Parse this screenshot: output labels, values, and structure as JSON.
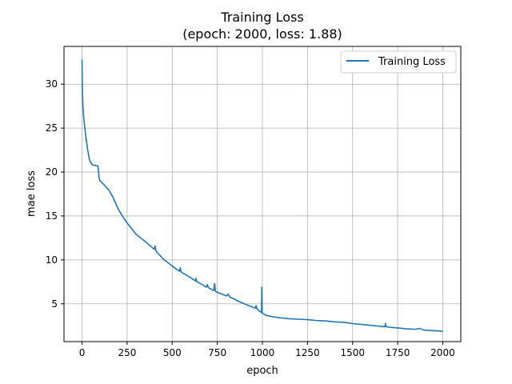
{
  "chart_data": {
    "type": "line",
    "title": "Training Loss",
    "subtitle": "(epoch: 2000, loss: 1.88)",
    "xlabel": "epoch",
    "ylabel": "mae loss",
    "xlim": [
      -100,
      2100
    ],
    "ylim": [
      0.7,
      34.3
    ],
    "xticks": [
      0,
      250,
      500,
      750,
      1000,
      1250,
      1500,
      1750,
      2000
    ],
    "yticks": [
      5,
      10,
      15,
      20,
      25,
      30
    ],
    "grid": true,
    "legend_position": "top-right",
    "series": [
      {
        "name": "Training Loss",
        "color": "#1f77b4",
        "points": [
          [
            0,
            32.8
          ],
          [
            2,
            29.0
          ],
          [
            5,
            27.5
          ],
          [
            10,
            26.0
          ],
          [
            20,
            24.2
          ],
          [
            30,
            22.7
          ],
          [
            40,
            21.5
          ],
          [
            50,
            21.0
          ],
          [
            60,
            20.8
          ],
          [
            70,
            20.75
          ],
          [
            88,
            20.7
          ],
          [
            95,
            19.3
          ],
          [
            100,
            19.0
          ],
          [
            120,
            18.6
          ],
          [
            150,
            17.9
          ],
          [
            170,
            17.2
          ],
          [
            200,
            15.8
          ],
          [
            230,
            14.8
          ],
          [
            250,
            14.2
          ],
          [
            300,
            12.9
          ],
          [
            350,
            12.1
          ],
          [
            400,
            11.2
          ],
          [
            405,
            11.6
          ],
          [
            410,
            11.0
          ],
          [
            450,
            10.1
          ],
          [
            500,
            9.3
          ],
          [
            540,
            8.7
          ],
          [
            545,
            9.1
          ],
          [
            550,
            8.6
          ],
          [
            600,
            8.0
          ],
          [
            630,
            7.6
          ],
          [
            632,
            7.9
          ],
          [
            635,
            7.55
          ],
          [
            690,
            6.9
          ],
          [
            695,
            7.2
          ],
          [
            700,
            6.85
          ],
          [
            730,
            6.5
          ],
          [
            735,
            7.3
          ],
          [
            740,
            6.4
          ],
          [
            800,
            5.9
          ],
          [
            810,
            6.1
          ],
          [
            820,
            5.75
          ],
          [
            850,
            5.5
          ],
          [
            855,
            5.4
          ],
          [
            900,
            5.0
          ],
          [
            960,
            4.5
          ],
          [
            965,
            4.8
          ],
          [
            970,
            4.4
          ],
          [
            995,
            4.0
          ],
          [
            997,
            6.9
          ],
          [
            999,
            3.95
          ],
          [
            1020,
            3.7
          ],
          [
            1050,
            3.55
          ],
          [
            1100,
            3.4
          ],
          [
            1150,
            3.3
          ],
          [
            1200,
            3.25
          ],
          [
            1250,
            3.2
          ],
          [
            1300,
            3.1
          ],
          [
            1350,
            3.05
          ],
          [
            1400,
            2.95
          ],
          [
            1450,
            2.9
          ],
          [
            1500,
            2.75
          ],
          [
            1550,
            2.65
          ],
          [
            1600,
            2.55
          ],
          [
            1650,
            2.45
          ],
          [
            1680,
            2.4
          ],
          [
            1682,
            2.8
          ],
          [
            1685,
            2.4
          ],
          [
            1700,
            2.35
          ],
          [
            1750,
            2.25
          ],
          [
            1800,
            2.15
          ],
          [
            1850,
            2.1
          ],
          [
            1870,
            2.2
          ],
          [
            1900,
            2.0
          ],
          [
            1950,
            1.95
          ],
          [
            2000,
            1.88
          ]
        ]
      }
    ]
  }
}
